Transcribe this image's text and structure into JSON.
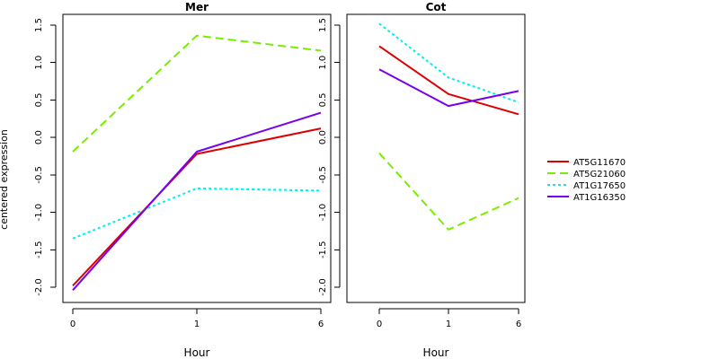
{
  "figure": {
    "ylabel": "centered expression",
    "legend_placement": "right"
  },
  "chart_data": [
    {
      "type": "line",
      "title": "Mer",
      "xlabel": "Hour",
      "ylabel": "centered expression",
      "x": [
        "0",
        "1",
        "6"
      ],
      "ylim": [
        -2.1,
        1.6
      ],
      "yticks": [
        "-2.0",
        "-1.5",
        "-1.0",
        "-0.5",
        "0.0",
        "0.5",
        "1.0",
        "1.5"
      ],
      "grid": false,
      "series": [
        {
          "name": "AT5G11670",
          "values": [
            -1.98,
            -0.22,
            0.12
          ],
          "color": "#dd0000",
          "dash": "solid"
        },
        {
          "name": "AT5G21060",
          "values": [
            -0.19,
            1.36,
            1.16
          ],
          "color": "#77ee00",
          "dash": "dashed"
        },
        {
          "name": "AT1G17650",
          "values": [
            -1.35,
            -0.68,
            -0.71
          ],
          "color": "#00eeee",
          "dash": "dotted"
        },
        {
          "name": "AT1G16350",
          "values": [
            -2.04,
            -0.19,
            0.33
          ],
          "color": "#7700ee",
          "dash": "solid"
        }
      ]
    },
    {
      "type": "line",
      "title": "Cot",
      "xlabel": "Hour",
      "ylabel": "",
      "x": [
        "0",
        "1",
        "6"
      ],
      "ylim": [
        -2.1,
        1.6
      ],
      "yticks": [
        "-2.0",
        "-1.5",
        "-1.0",
        "-0.5",
        "0.0",
        "0.5",
        "1.0",
        "1.5"
      ],
      "grid": false,
      "series": [
        {
          "name": "AT5G11670",
          "values": [
            1.22,
            0.58,
            0.31
          ],
          "color": "#dd0000",
          "dash": "solid"
        },
        {
          "name": "AT5G21060",
          "values": [
            -0.21,
            -1.23,
            -0.81
          ],
          "color": "#77ee00",
          "dash": "dashed"
        },
        {
          "name": "AT1G17650",
          "values": [
            1.52,
            0.8,
            0.47
          ],
          "color": "#00eeee",
          "dash": "dotted"
        },
        {
          "name": "AT1G16350",
          "values": [
            0.91,
            0.42,
            0.62
          ],
          "color": "#7700ee",
          "dash": "solid"
        }
      ]
    }
  ],
  "legend": {
    "entries": [
      {
        "name": "AT5G11670",
        "color": "#dd0000",
        "dash": "solid"
      },
      {
        "name": "AT5G21060",
        "color": "#77ee00",
        "dash": "dashed"
      },
      {
        "name": "AT1G17650",
        "color": "#00eeee",
        "dash": "dotted"
      },
      {
        "name": "AT1G16350",
        "color": "#7700ee",
        "dash": "solid"
      }
    ]
  }
}
